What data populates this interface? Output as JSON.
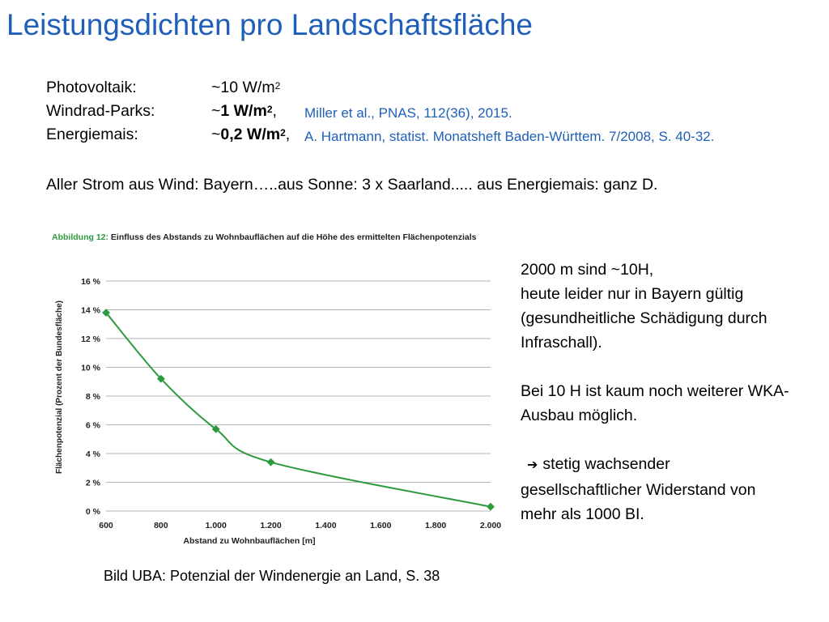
{
  "slide": {
    "title": "Leistungsdichten pro Landschaftsfläche",
    "facts": [
      {
        "label": "Photovoltaik:",
        "value_prefix": "~10 W/m",
        "value_bold": "",
        "sup": "2",
        "value_suffix": "",
        "source": ""
      },
      {
        "label": "Windrad-Parks:",
        "value_prefix": "~",
        "value_bold": "1 W/m",
        "sup": "2",
        "value_suffix": ",",
        "source": "Miller et al., PNAS, 112(36), 2015."
      },
      {
        "label": "Energiemais:",
        "value_prefix": "~",
        "value_bold": "0,2 W/m",
        "sup": "2",
        "value_suffix": ",",
        "source": "A. Hartmann, statist. Monatsheft Baden-Württem. 7/2008, S. 40-32."
      }
    ],
    "summary": "Aller Strom aus Wind: Bayern…..aus Sonne: 3 x Saarland..... aus Energiemais: ganz D.",
    "caption": "Bild UBA: Potenzial der Windenergie an Land, S. 38",
    "note": {
      "para1": [
        "2000 m sind ~10H,",
        "heute leider nur in Bayern gültig",
        "(gesundheitliche Schädigung durch",
        "Infraschall)."
      ],
      "para2": [
        "Bei 10 H ist kaum noch weiterer WKA-",
        "Ausbau möglich."
      ],
      "para3": [
        "stetig wachsender",
        "gesellschaftlicher Widerstand von",
        "mehr als 1000 BI."
      ],
      "arrow_icon": "arrow-right-icon"
    }
  },
  "chart_data": {
    "type": "line",
    "title": "Abbildung 12: Einfluss des Abstands zu Wohnbauflächen auf die Höhe des ermittelten Flächenpotenzials",
    "title_prefix": "Abbildung 12:",
    "title_rest": " Einfluss des Abstands zu Wohnbauflächen auf die Höhe des ermittelten Flächenpotenzials",
    "xlabel": "Abstand zu Wohnbauflächen [m]",
    "ylabel": "Flächenpotenzial (Prozent der Bundesfläche)",
    "x_ticks": [
      "600",
      "800",
      "1.000",
      "1.200",
      "1.400",
      "1.600",
      "1.800",
      "2.000"
    ],
    "y_ticks": [
      "0 %",
      "2 %",
      "4 %",
      "6 %",
      "8 %",
      "10 %",
      "12 %",
      "14 %",
      "16 %"
    ],
    "xlim": [
      600,
      2000
    ],
    "ylim": [
      0,
      16
    ],
    "grid": "horizontal",
    "series": [
      {
        "x": [
          600,
          800,
          1000,
          1200,
          2000
        ],
        "values": [
          13.8,
          9.2,
          5.7,
          3.4,
          0.3
        ],
        "color": "#2e9a3f"
      }
    ],
    "colors": {
      "title_prefix": "#2e9a3f",
      "line": "#2e9a3f",
      "grid": "#b5b5b5"
    }
  }
}
